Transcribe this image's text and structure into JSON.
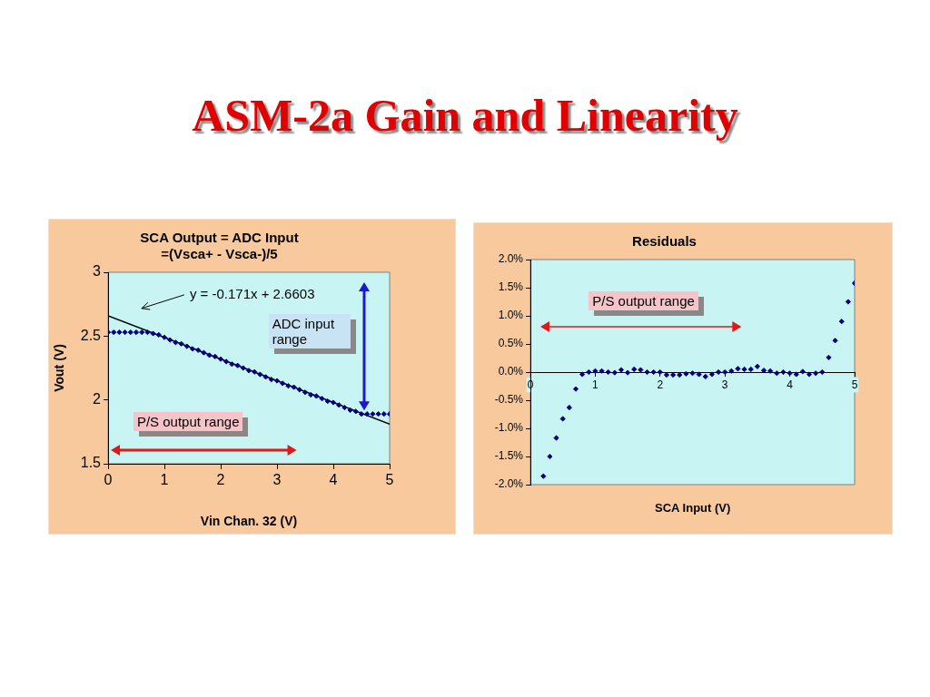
{
  "chart_data": [
    {
      "type": "other",
      "title": "ASM-2a Gain and Linearity"
    },
    {
      "type": "scatter",
      "title": "SCA Output = ADC Input\n=(Vsca+ - Vsca-)/5",
      "xlabel": "Vin Chan. 32 (V)",
      "ylabel": "Vout (V)",
      "xlim": [
        0,
        5
      ],
      "xticks": [
        0,
        1,
        2,
        3,
        4,
        5
      ],
      "ylim": [
        1.5,
        3
      ],
      "yticks": [
        1.5,
        2,
        2.5,
        3
      ],
      "grid": false,
      "marker": "diamond",
      "annotations": [
        "y = -0.171x + 2.6603",
        "ADC input range",
        "P/S output range"
      ],
      "series": [
        {
          "type": "scatter",
          "color": "#000080",
          "x": [
            0,
            0.1,
            0.2,
            0.3,
            0.4,
            0.5,
            0.6,
            0.7,
            0.8,
            0.9,
            1,
            1.1,
            1.2,
            1.3,
            1.4,
            1.5,
            1.6,
            1.7,
            1.8,
            1.9,
            2,
            2.1,
            2.2,
            2.3,
            2.4,
            2.5,
            2.6,
            2.7,
            2.8,
            2.9,
            3,
            3.1,
            3.2,
            3.3,
            3.4,
            3.5,
            3.6,
            3.7,
            3.8,
            3.9,
            4,
            4.1,
            4.2,
            4.3,
            4.4,
            4.5,
            4.6,
            4.7,
            4.8,
            4.9,
            5
          ],
          "values": [
            2.53,
            2.53,
            2.53,
            2.53,
            2.53,
            2.53,
            2.53,
            2.53,
            2.52,
            2.51,
            2.49,
            2.47,
            2.45,
            2.44,
            2.42,
            2.4,
            2.39,
            2.37,
            2.35,
            2.34,
            2.32,
            2.3,
            2.28,
            2.27,
            2.25,
            2.23,
            2.22,
            2.2,
            2.18,
            2.16,
            2.15,
            2.13,
            2.11,
            2.1,
            2.08,
            2.06,
            2.04,
            2.03,
            2.01,
            1.99,
            1.98,
            1.96,
            1.94,
            1.92,
            1.91,
            1.89,
            1.89,
            1.89,
            1.89,
            1.89,
            1.89
          ]
        },
        {
          "type": "line",
          "color": "#000000",
          "marker": "none",
          "x": [
            0,
            5
          ],
          "values": [
            2.66,
            1.81
          ]
        }
      ]
    },
    {
      "type": "scatter",
      "title": "Residuals",
      "xlabel": "SCA Input (V)",
      "xlim": [
        0,
        5
      ],
      "xticks": [
        0,
        1,
        2,
        3,
        4,
        5
      ],
      "ylim": [
        -2,
        2
      ],
      "yticks": [
        {
          "value": -2,
          "label": "-2.0%"
        },
        {
          "value": -1.5,
          "label": "-1.5%"
        },
        {
          "value": -1,
          "label": "-1.0%"
        },
        {
          "value": -0.5,
          "label": "-0.5%"
        },
        {
          "value": 0,
          "label": "0.0%"
        },
        {
          "value": 0.5,
          "label": "0.5%"
        },
        {
          "value": 1,
          "label": "1.0%"
        },
        {
          "value": 1.5,
          "label": "1.5%"
        },
        {
          "value": 2,
          "label": "2.0%"
        }
      ],
      "grid": false,
      "marker": "diamond",
      "annotations": [
        "P/S output range"
      ],
      "series": [
        {
          "type": "scatter",
          "color": "#000080",
          "x": [
            0.2,
            0.3,
            0.4,
            0.5,
            0.6,
            0.7,
            0.8,
            0.9,
            1,
            1.1,
            1.2,
            1.3,
            1.4,
            1.5,
            1.6,
            1.7,
            1.8,
            1.9,
            2,
            2.1,
            2.2,
            2.3,
            2.4,
            2.5,
            2.6,
            2.7,
            2.8,
            2.9,
            3,
            3.1,
            3.2,
            3.3,
            3.4,
            3.5,
            3.6,
            3.7,
            3.8,
            3.9,
            4,
            4.1,
            4.2,
            4.3,
            4.4,
            4.5,
            4.6,
            4.7,
            4.8,
            4.9,
            5
          ],
          "values": [
            -1.85,
            -1.5,
            -1.17,
            -0.83,
            -0.63,
            -0.3,
            -0.04,
            0,
            0.02,
            0.02,
            0,
            -0.01,
            0.04,
            -0.01,
            0.05,
            0.04,
            0,
            0,
            0,
            -0.05,
            -0.05,
            -0.05,
            -0.03,
            -0.02,
            -0.04,
            -0.08,
            -0.04,
            0,
            0,
            0.02,
            0.06,
            0.05,
            0.05,
            0.1,
            0.03,
            0.02,
            -0.02,
            0,
            -0.02,
            -0.04,
            0.01,
            -0.04,
            -0.02,
            0,
            0.26,
            0.56,
            0.9,
            1.25,
            1.58
          ]
        }
      ]
    }
  ]
}
